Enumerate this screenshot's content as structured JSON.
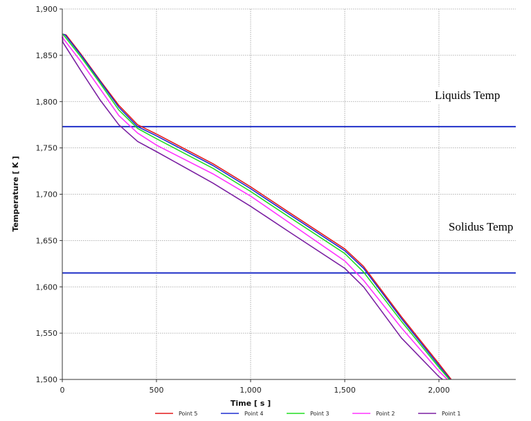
{
  "chart_data": {
    "type": "line",
    "title": "",
    "xlabel": "Time [ s ]",
    "ylabel": "Temperature [ K ]",
    "xlim": [
      -10,
      2400
    ],
    "ylim": [
      1500,
      1900
    ],
    "x_ticks": [
      0,
      500,
      1000,
      1500,
      2000
    ],
    "x_tick_labels": [
      "0",
      "500",
      "1,000",
      "1,500",
      "2,000"
    ],
    "y_ticks": [
      1500,
      1550,
      1600,
      1650,
      1700,
      1750,
      1800,
      1850,
      1900
    ],
    "y_tick_labels": [
      "1,500",
      "1,550",
      "1,600",
      "1,650",
      "1,700",
      "1,750",
      "1,800",
      "1,850",
      "1,900"
    ],
    "grid": true,
    "legend_position": "bottom",
    "series": [
      {
        "name": "Point 5",
        "color": "#e41a1c",
        "x": [
          0,
          20,
          100,
          200,
          300,
          400,
          500,
          800,
          1000,
          1200,
          1500,
          1600,
          1800,
          2000,
          2065
        ],
        "y": [
          1873,
          1872,
          1851,
          1823,
          1796,
          1775,
          1765,
          1733,
          1708,
          1681,
          1641,
          1622,
          1568,
          1517,
          1500
        ]
      },
      {
        "name": "Point 4",
        "color": "#1f2fd0",
        "x": [
          0,
          15,
          100,
          200,
          300,
          400,
          500,
          800,
          1000,
          1200,
          1500,
          1600,
          1800,
          2000,
          2060
        ],
        "y": [
          1873,
          1872,
          1850,
          1822,
          1794,
          1773,
          1763,
          1731,
          1706,
          1679,
          1639,
          1620,
          1566,
          1515,
          1500
        ]
      },
      {
        "name": "Point 3",
        "color": "#22dd22",
        "x": [
          0,
          10,
          100,
          200,
          300,
          400,
          500,
          800,
          1000,
          1200,
          1500,
          1600,
          1800,
          2000,
          2055
        ],
        "y": [
          1873,
          1871,
          1848,
          1820,
          1791,
          1771,
          1760,
          1728,
          1703,
          1676,
          1636,
          1616,
          1563,
          1513,
          1500
        ]
      },
      {
        "name": "Point 2",
        "color": "#ff33ff",
        "x": [
          0,
          5,
          100,
          200,
          300,
          400,
          500,
          800,
          1000,
          1200,
          1500,
          1600,
          1800,
          2000,
          2045
        ],
        "y": [
          1872,
          1868,
          1843,
          1814,
          1785,
          1766,
          1753,
          1722,
          1698,
          1670,
          1628,
          1607,
          1556,
          1509,
          1500
        ]
      },
      {
        "name": "Point 1",
        "color": "#7b1fa2",
        "x": [
          0,
          3,
          100,
          200,
          300,
          400,
          500,
          800,
          1000,
          1200,
          1500,
          1600,
          1800,
          2000,
          2020
        ],
        "y": [
          1870,
          1864,
          1833,
          1802,
          1775,
          1757,
          1746,
          1712,
          1687,
          1660,
          1620,
          1600,
          1545,
          1503,
          1500
        ]
      }
    ],
    "reference_lines": [
      {
        "label": "Liquids Temp",
        "y": 1773,
        "color": "#2030c8"
      },
      {
        "label": "Solidus Temp",
        "y": 1615,
        "color": "#2030c8"
      }
    ]
  }
}
